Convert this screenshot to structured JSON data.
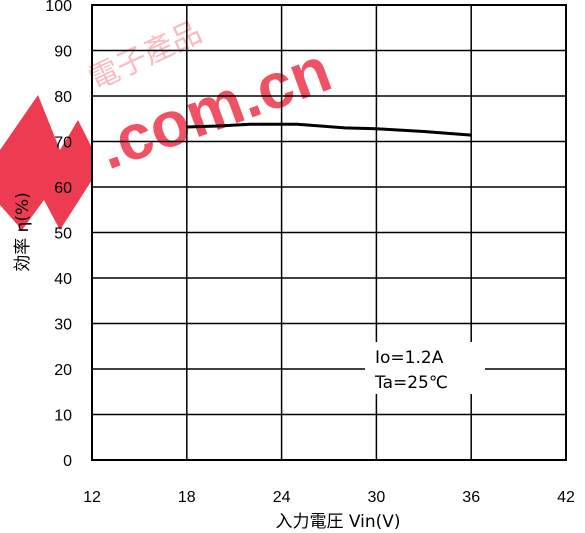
{
  "chart_data": {
    "type": "line",
    "title": "",
    "xlabel": "入力電圧 Vin(V)",
    "ylabel": "効率 η(%)",
    "xlim": [
      12,
      42
    ],
    "ylim": [
      0,
      100
    ],
    "xticks": [
      12,
      18,
      24,
      30,
      36,
      42
    ],
    "yticks": [
      0,
      10,
      20,
      30,
      40,
      50,
      60,
      70,
      80,
      90,
      100
    ],
    "grid": true,
    "series": [
      {
        "name": "",
        "color": "#000000",
        "x": [
          18,
          20,
          22,
          25,
          28,
          30,
          33,
          36
        ],
        "y": [
          73.2,
          73.4,
          73.8,
          73.8,
          73.0,
          72.8,
          72.2,
          71.4
        ]
      }
    ],
    "annotation": {
      "line1": "Io=1.2A",
      "line2": "Ta=25℃"
    }
  },
  "watermark": {
    "text": ".com.cn",
    "color": "#e8001c",
    "chinese_text": "電子產品"
  }
}
